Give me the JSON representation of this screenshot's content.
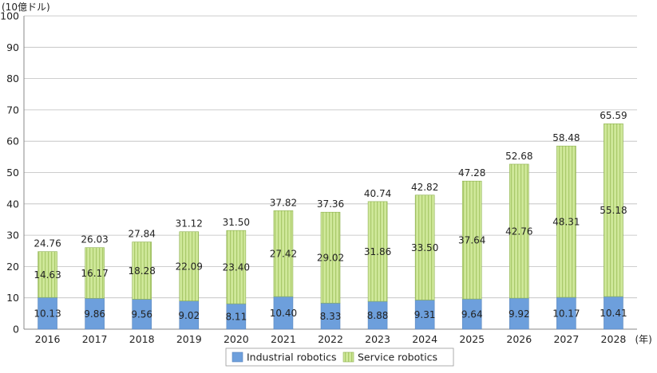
{
  "chart_data": {
    "type": "bar",
    "stacked": true,
    "y_unit_label": "(10億ドル)",
    "x_unit_label": "(年)",
    "categories": [
      "2016",
      "2017",
      "2018",
      "2019",
      "2020",
      "2021",
      "2022",
      "2023",
      "2024",
      "2025",
      "2026",
      "2027",
      "2028"
    ],
    "series": [
      {
        "name": "Industrial robotics",
        "values": [
          10.13,
          9.86,
          9.56,
          9.02,
          8.11,
          10.4,
          8.33,
          8.88,
          9.31,
          9.64,
          9.92,
          10.17,
          10.41
        ],
        "labels": [
          "10.13",
          "9.86",
          "9.56",
          "9.02",
          "8.11",
          "10.40",
          "8.33",
          "8.88",
          "9.31",
          "9.64",
          "9.92",
          "10.17",
          "10.41"
        ],
        "color": "#6d9fdc"
      },
      {
        "name": "Service robotics",
        "values": [
          14.63,
          16.17,
          18.28,
          22.09,
          23.4,
          27.42,
          29.02,
          31.86,
          33.5,
          37.64,
          42.76,
          48.31,
          55.18
        ],
        "labels": [
          "14.63",
          "16.17",
          "18.28",
          "22.09",
          "23.40",
          "27.42",
          "29.02",
          "31.86",
          "33.50",
          "37.64",
          "42.76",
          "48.31",
          "55.18"
        ],
        "color": "#c8e48a"
      }
    ],
    "totals": [
      24.76,
      26.03,
      27.84,
      31.12,
      31.5,
      37.82,
      37.36,
      40.74,
      42.82,
      47.28,
      52.68,
      58.48,
      65.59
    ],
    "total_labels": [
      "24.76",
      "26.03",
      "27.84",
      "31.12",
      "31.50",
      "37.82",
      "37.36",
      "40.74",
      "42.82",
      "47.28",
      "52.68",
      "58.48",
      "65.59"
    ],
    "ylim": [
      0,
      100
    ],
    "yticks": [
      0,
      10,
      20,
      30,
      40,
      50,
      60,
      70,
      80,
      90,
      100
    ],
    "grid": true,
    "legend_position": "bottom"
  }
}
